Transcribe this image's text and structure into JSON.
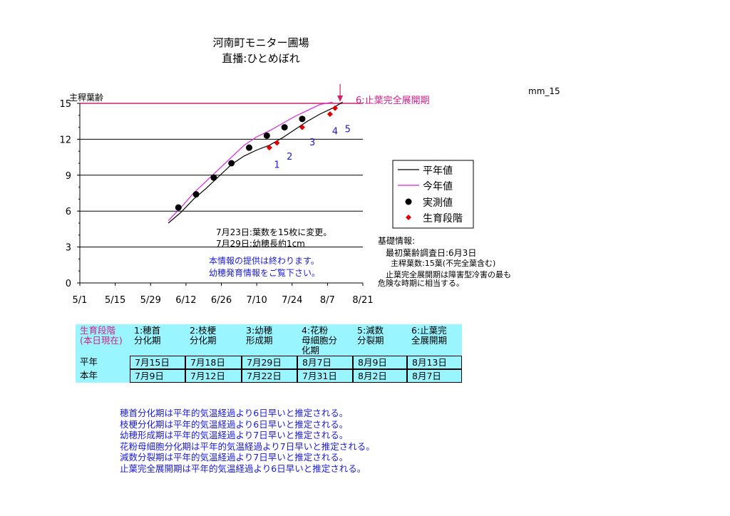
{
  "title_line1": "河南町モニター圃場",
  "title_line2": "直播:ひとめぼれ",
  "corner_label": "mm_15",
  "chart_data": {
    "type": "line",
    "ylabel": "主稈葉齢",
    "ylim": [
      0,
      15
    ],
    "yticks": [
      0,
      3,
      6,
      9,
      12,
      15
    ],
    "xlim_days": [
      0,
      112
    ],
    "xticks": [
      {
        "label": "5/1",
        "day": 0
      },
      {
        "label": "5/15",
        "day": 14
      },
      {
        "label": "5/29",
        "day": 28
      },
      {
        "label": "6/12",
        "day": 42
      },
      {
        "label": "6/26",
        "day": 56
      },
      {
        "label": "7/10",
        "day": 70
      },
      {
        "label": "7/24",
        "day": 84
      },
      {
        "label": "8/7",
        "day": 98
      },
      {
        "label": "8/21",
        "day": 112
      }
    ],
    "grid": "horizontal",
    "reference_line": {
      "y": 15,
      "color": "#cc2266"
    },
    "series": [
      {
        "name": "平年値",
        "kind": "line",
        "color": "#000000",
        "points": [
          [
            35,
            5.0
          ],
          [
            40,
            5.9
          ],
          [
            45,
            7.0
          ],
          [
            50,
            7.9
          ],
          [
            55,
            8.9
          ],
          [
            60,
            9.9
          ],
          [
            65,
            10.6
          ],
          [
            70,
            11.1
          ],
          [
            75,
            11.5
          ],
          [
            80,
            12.1
          ],
          [
            85,
            12.8
          ],
          [
            90,
            13.5
          ],
          [
            95,
            14.1
          ],
          [
            100,
            14.6
          ],
          [
            104,
            15.1
          ]
        ]
      },
      {
        "name": "今年値",
        "kind": "line",
        "color": "#dd22dd",
        "points": [
          [
            35,
            5.2
          ],
          [
            40,
            6.3
          ],
          [
            45,
            7.5
          ],
          [
            50,
            8.5
          ],
          [
            55,
            9.5
          ],
          [
            60,
            10.5
          ],
          [
            65,
            11.5
          ],
          [
            70,
            12.2
          ],
          [
            75,
            12.7
          ],
          [
            80,
            13.3
          ],
          [
            85,
            13.9
          ],
          [
            90,
            14.4
          ],
          [
            95,
            14.9
          ],
          [
            100,
            15.1
          ]
        ]
      },
      {
        "name": "実測値",
        "kind": "dots",
        "color": "#000000",
        "points": [
          [
            39,
            6.3
          ],
          [
            46,
            7.4
          ],
          [
            53,
            8.8
          ],
          [
            60,
            10.0
          ],
          [
            67,
            11.3
          ],
          [
            74,
            12.3
          ],
          [
            81,
            13.0
          ],
          [
            88,
            13.7
          ]
        ]
      },
      {
        "name": "生育段階",
        "kind": "diamonds",
        "color": "#e00000",
        "points": [
          [
            75,
            11.3
          ],
          [
            78,
            11.7
          ],
          [
            88,
            13.0
          ],
          [
            99,
            14.1
          ],
          [
            101,
            14.6
          ]
        ]
      }
    ],
    "stage_labels": [
      {
        "text": "1",
        "day": 78,
        "y": 9.6
      },
      {
        "text": "2",
        "day": 83,
        "y": 10.3
      },
      {
        "text": "3",
        "day": 92,
        "y": 11.5
      },
      {
        "text": "4",
        "day": 101,
        "y": 12.4
      },
      {
        "text": "5",
        "day": 106,
        "y": 12.6
      }
    ],
    "legend_position": "right",
    "legend": [
      "平年値",
      "今年値",
      "実測値",
      "生育段階"
    ],
    "arrow_annotation": {
      "day": 103,
      "text": "6:止葉完全展開期"
    }
  },
  "notes_in_chart": {
    "line1": "7月23日:葉数を15枚に変更。",
    "line2": "7月29日:幼穂長約1cm",
    "notice1": "本情報の提供は終わります。",
    "notice2": "幼穂発育情報をご覧下さい。"
  },
  "basic_info": {
    "heading": "基礎情報:",
    "survey_date": "最初葉齢調査日:6月3日",
    "leaf_count": "主稈葉数:15葉(不完全葉含む)",
    "warning1": "止葉完全展開期は障害型冷害の最も",
    "warning2": "危険な時期に相当する。"
  },
  "stage_table": {
    "corner1": "生育段階",
    "corner2": "(本日現在)",
    "headers": [
      [
        "1:穂首",
        "分化期"
      ],
      [
        "2:枝梗",
        "分化期"
      ],
      [
        "3:幼穂",
        "形成期"
      ],
      [
        "4:花粉",
        "母細胞分",
        "化期"
      ],
      [
        "5:減数",
        "分裂期"
      ],
      [
        "6:止葉完",
        "全展開期"
      ]
    ],
    "rows": [
      {
        "label": "平年",
        "values": [
          "7月15日",
          "7月18日",
          "7月29日",
          "8月7日",
          "8月9日",
          "8月13日"
        ]
      },
      {
        "label": "本年",
        "values": [
          "7月9日",
          "7月12日",
          "7月22日",
          "7月31日",
          "8月2日",
          "8月7日"
        ]
      }
    ]
  },
  "conclusions": [
    "穂首分化期は平年的気温経過より6日早いと推定される。",
    "枝梗分化期は平年的気温経過より6日早いと推定される。",
    "幼穂形成期は平年的気温経過より7日早いと推定される。",
    "花粉母細胞分化期は平年的気温経過より7日早いと推定される。",
    "減数分裂期は平年的気温経過より7日早いと推定される。",
    "止葉完全展開期は平年的気温経過より6日早いと推定される。"
  ]
}
